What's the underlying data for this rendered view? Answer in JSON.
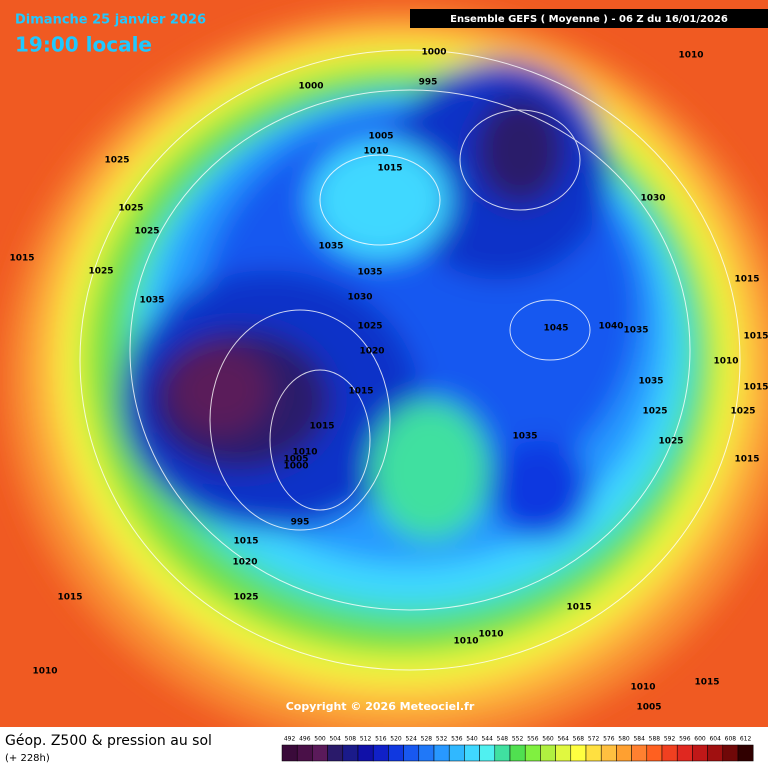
{
  "header": {
    "date": "Dimanche 25 janvier 2026",
    "time": "19:00 locale",
    "model": "Ensemble GEFS  ( Moyenne )  -  06 Z du 16/01/2026"
  },
  "copyright": "Copyright © 2026 Meteociel.fr",
  "footer": {
    "title": "Géop. Z500 & pression au sol",
    "lead": "(+ 228h)"
  },
  "legend": {
    "values": [
      492,
      496,
      500,
      504,
      508,
      512,
      516,
      520,
      524,
      528,
      532,
      536,
      540,
      544,
      548,
      552,
      556,
      560,
      564,
      568,
      572,
      576,
      580,
      584,
      588,
      592,
      596,
      600,
      604,
      608,
      612
    ],
    "colors": [
      "#3a0a3a",
      "#4a1048",
      "#5a1a5a",
      "#2a1a6a",
      "#1a1a8a",
      "#1010a8",
      "#1020c8",
      "#1038e0",
      "#1858f0",
      "#2078f8",
      "#2898ff",
      "#30b8ff",
      "#40d8ff",
      "#50f0f0",
      "#40e0a0",
      "#50e050",
      "#80f040",
      "#b0f040",
      "#e0f840",
      "#ffff40",
      "#ffe040",
      "#ffc040",
      "#ffa030",
      "#ff8030",
      "#ff6020",
      "#f04020",
      "#e02820",
      "#c01818",
      "#a01010",
      "#700808",
      "#300000"
    ]
  },
  "isobar_labels": [
    "1000",
    "995",
    "1000",
    "1010",
    "1025",
    "1005",
    "1010",
    "1015",
    "1030",
    "1025",
    "1025",
    "1015",
    "1035",
    "1025",
    "1035",
    "1015",
    "1035",
    "1030",
    "1025",
    "1045",
    "1040",
    "1035",
    "1015",
    "1020",
    "1010",
    "1035",
    "1015",
    "1015",
    "1025",
    "1015",
    "1025",
    "1035",
    "1025",
    "1010",
    "1005",
    "1000",
    "1015",
    "995",
    "1015",
    "1020",
    "1025",
    "1015",
    "1015",
    "1010",
    "1010",
    "1010",
    "1010",
    "1015",
    "1005"
  ]
}
